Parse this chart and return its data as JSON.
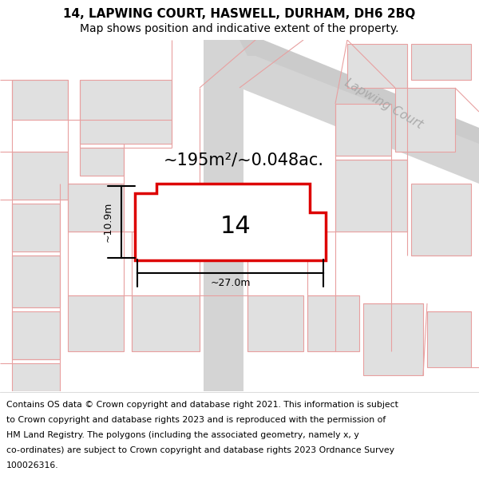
{
  "title": "14, LAPWING COURT, HASWELL, DURHAM, DH6 2BQ",
  "subtitle": "Map shows position and indicative extent of the property.",
  "area_label": "~195m²/~0.048ac.",
  "plot_number": "14",
  "dim_width": "~27.0m",
  "dim_height": "~10.9m",
  "road_label": "Lapwing Court",
  "footer_lines": [
    "Contains OS data © Crown copyright and database right 2021. This information is subject",
    "to Crown copyright and database rights 2023 and is reproduced with the permission of",
    "HM Land Registry. The polygons (including the associated geometry, namely x, y",
    "co-ordinates) are subject to Crown copyright and database rights 2023 Ordnance Survey",
    "100026316."
  ],
  "background_color": "#ffffff",
  "map_bg": "#ffffff",
  "plot_fill": "#ffffff",
  "plot_edge": "#dd0000",
  "neighbor_fill": "#e0e0e0",
  "neighbor_edge": "#e8a0a0",
  "road_fill": "#d8d8d8",
  "title_fontsize": 11,
  "subtitle_fontsize": 10,
  "footer_fontsize": 7.8
}
